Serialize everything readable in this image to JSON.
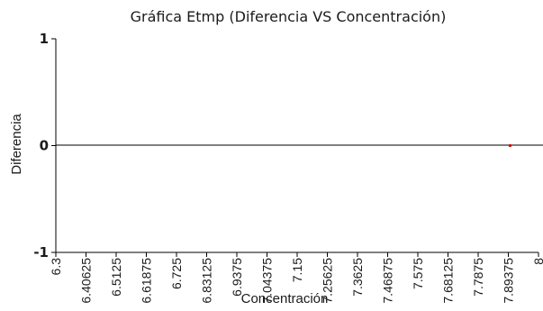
{
  "chart_data": {
    "type": "scatter",
    "title": "Gráfica Etmp (Diferencia VS Concentración)",
    "xlabel": "Concentración",
    "ylabel": "Diferencia",
    "xlim": [
      6.3,
      8
    ],
    "ylim": [
      -1,
      1
    ],
    "x_ticks": [
      "6.3",
      "6.40625",
      "6.5125",
      "6.61875",
      "6.725",
      "6.83125",
      "6.9375",
      "7.04375",
      "7.15",
      "7.25625",
      "7.3625",
      "7.46875",
      "7.575",
      "7.68125",
      "7.7875",
      "7.89375",
      "8"
    ],
    "y_ticks": [
      "1",
      "0",
      "-1"
    ],
    "zero_line": true,
    "grid": false,
    "legend": "none",
    "points": [
      {
        "x": 7.9,
        "y": 0
      }
    ],
    "colors": {
      "point": "#cc0000",
      "axis": "#000000"
    }
  }
}
